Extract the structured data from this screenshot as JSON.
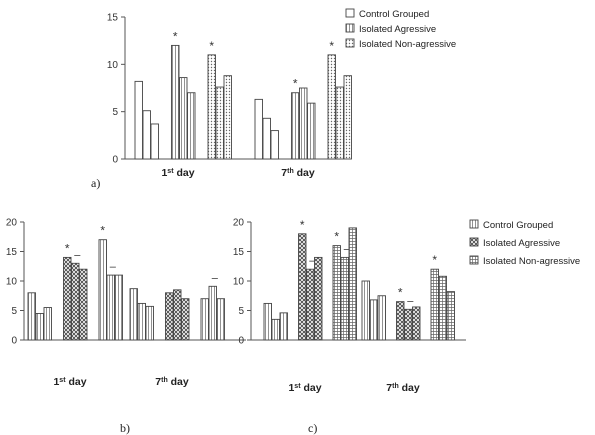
{
  "figure": {
    "background": "#ffffff",
    "line_color": "#555555"
  },
  "chart_data": [
    {
      "id": "a",
      "type": "bar",
      "panel_label": "a)",
      "ylim": [
        0,
        15
      ],
      "yticks": [
        0,
        5,
        10,
        15
      ],
      "groups": [
        {
          "label_main": "1",
          "label_sup": "st",
          "label_rest": " day",
          "subgroups": [
            {
              "values": [
                8.2,
                5.1,
                3.7
              ]
            },
            {
              "values": [
                12.0,
                8.6,
                7.0
              ],
              "annotations": [
                "*",
                "",
                ""
              ]
            },
            {
              "values": [
                11.0,
                7.6,
                8.8
              ],
              "annotations": [
                "*",
                "",
                ""
              ]
            }
          ]
        },
        {
          "label_main": "7",
          "label_sup": "th",
          "label_rest": " day",
          "subgroups": [
            {
              "values": [
                6.3,
                4.3,
                3.0
              ]
            },
            {
              "values": [
                7.0,
                7.5,
                5.9
              ],
              "annotations": [
                "*",
                "",
                ""
              ]
            },
            {
              "values": [
                11.0,
                7.6,
                8.8
              ],
              "annotations": [
                "*",
                "",
                ""
              ]
            }
          ]
        }
      ],
      "legend": [
        "Control Grouped",
        "Isolated Agressive",
        "Isolated Non-agressive"
      ]
    },
    {
      "id": "b",
      "type": "bar",
      "panel_label": "b)",
      "ylim": [
        0,
        20
      ],
      "yticks": [
        0,
        5,
        10,
        15,
        20
      ],
      "groups": [
        {
          "label_main": "1",
          "label_sup": "st",
          "label_rest": " day",
          "subgroups": [
            {
              "values": [
                8.0,
                4.5,
                5.5
              ]
            },
            {
              "values": [
                14.0,
                13.0,
                12.0
              ],
              "annotations": [
                "*",
                "–",
                ""
              ]
            },
            {
              "values": [
                17.0,
                11.0,
                11.0
              ],
              "annotations": [
                "*",
                "–",
                ""
              ]
            }
          ]
        },
        {
          "label_main": "7",
          "label_sup": "th",
          "label_rest": " day",
          "subgroups": [
            {
              "values": [
                8.7,
                6.2,
                5.7
              ]
            },
            {
              "values": [
                8.0,
                8.5,
                7.0
              ]
            },
            {
              "values": [
                7.0,
                9.1,
                7.0
              ],
              "annotations": [
                "",
                "–",
                ""
              ]
            }
          ]
        }
      ]
    },
    {
      "id": "c",
      "type": "bar",
      "panel_label": "c)",
      "ylim": [
        0,
        20
      ],
      "yticks": [
        0,
        5,
        10,
        15,
        20
      ],
      "groups": [
        {
          "label_main": "1",
          "label_sup": "st",
          "label_rest": " day",
          "subgroups": [
            {
              "values": [
                6.2,
                3.5,
                4.6
              ]
            },
            {
              "values": [
                18.0,
                12.0,
                14.0
              ],
              "annotations": [
                "*",
                "–",
                ""
              ]
            },
            {
              "values": [
                16.0,
                14.0,
                19.0
              ],
              "annotations": [
                "*",
                "–",
                ""
              ]
            }
          ]
        },
        {
          "label_main": "7",
          "label_sup": "th",
          "label_rest": " day",
          "subgroups": [
            {
              "values": [
                10.0,
                6.8,
                7.5
              ]
            },
            {
              "values": [
                6.5,
                5.2,
                5.6
              ],
              "annotations": [
                "*",
                "–",
                ""
              ]
            },
            {
              "values": [
                12.0,
                10.8,
                8.2
              ],
              "annotations": [
                "*",
                "",
                ""
              ]
            }
          ]
        }
      ],
      "legend": [
        "Control Grouped",
        "Isolated Agressive",
        "Isolated Non-agressive"
      ]
    }
  ]
}
